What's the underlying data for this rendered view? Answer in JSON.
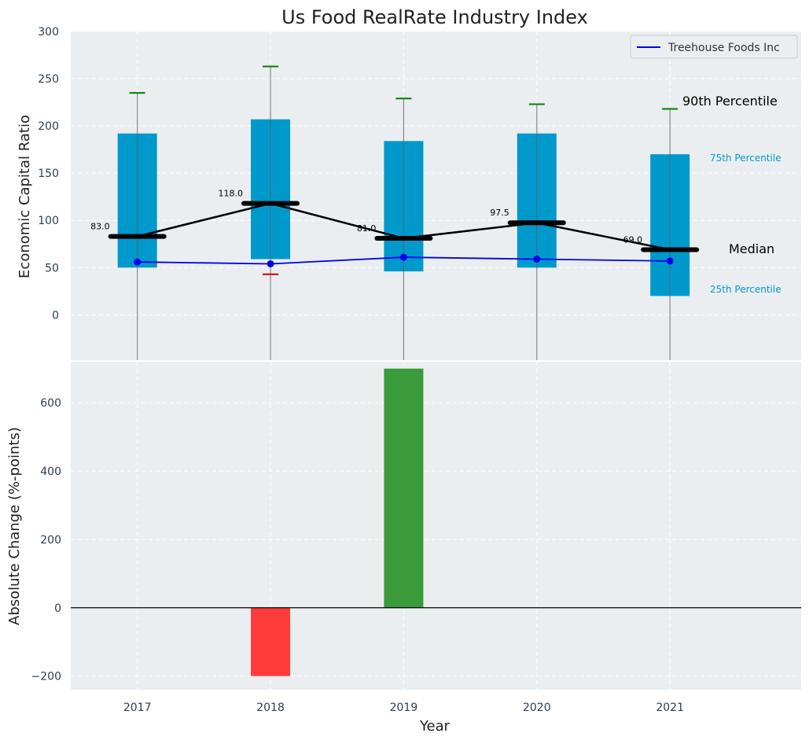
{
  "chart_data": {
    "type": "box",
    "title": "Us Food RealRate Industry Index",
    "xlabel": "Year",
    "ylabel_top": "Economic Capital Ratio",
    "ylabel_bottom": "Absolute Change (%-points)",
    "categories": [
      "2017",
      "2018",
      "2019",
      "2020",
      "2021"
    ],
    "top_panel": {
      "ylim": [
        -48,
        300
      ],
      "yticks": [
        0,
        50,
        100,
        150,
        200,
        250,
        300
      ],
      "grid": true,
      "boxes": [
        {
          "year": "2017",
          "p25": 50,
          "p75": 192,
          "median": 83.0,
          "median_label": "83.0",
          "p90": 235,
          "low_marker": null
        },
        {
          "year": "2018",
          "p25": 59,
          "p75": 207,
          "median": 118.0,
          "median_label": "118.0",
          "p90": 263,
          "low_marker": 43
        },
        {
          "year": "2019",
          "p25": 46,
          "p75": 184,
          "median": 81.0,
          "median_label": "81.0",
          "p90": 229,
          "low_marker": null
        },
        {
          "year": "2020",
          "p25": 50,
          "p75": 192,
          "median": 97.5,
          "median_label": "97.5",
          "p90": 223,
          "low_marker": null
        },
        {
          "year": "2021",
          "p25": 20,
          "p75": 170,
          "median": 69.0,
          "median_label": "69.0",
          "p90": 218,
          "low_marker": null
        }
      ],
      "series": [
        {
          "name": "Treehouse Foods Inc",
          "color": "#0000ee",
          "values": [
            56,
            54,
            61,
            59,
            57
          ]
        }
      ],
      "legend_position": "top-right",
      "annotations": {
        "p90": "90th Percentile",
        "p75": "75th Percentile",
        "median": "Median",
        "p25": "25th Percentile"
      }
    },
    "bottom_panel": {
      "ylim": [
        -240,
        720
      ],
      "yticks": [
        -200,
        0,
        200,
        400,
        600
      ],
      "grid": true,
      "values": [
        0,
        -200,
        700,
        0,
        0
      ]
    },
    "colors": {
      "box": "#0099cc",
      "median": "#000000",
      "p90_cap": "#008000",
      "low_cap": "#cc0000",
      "positive_bar": "#3a9b3a",
      "negative_bar": "#ff3b3b",
      "panel_bg": "#eaeef0",
      "tick_text": "#2c3e50",
      "annotation_blue": "#0099cc"
    }
  }
}
